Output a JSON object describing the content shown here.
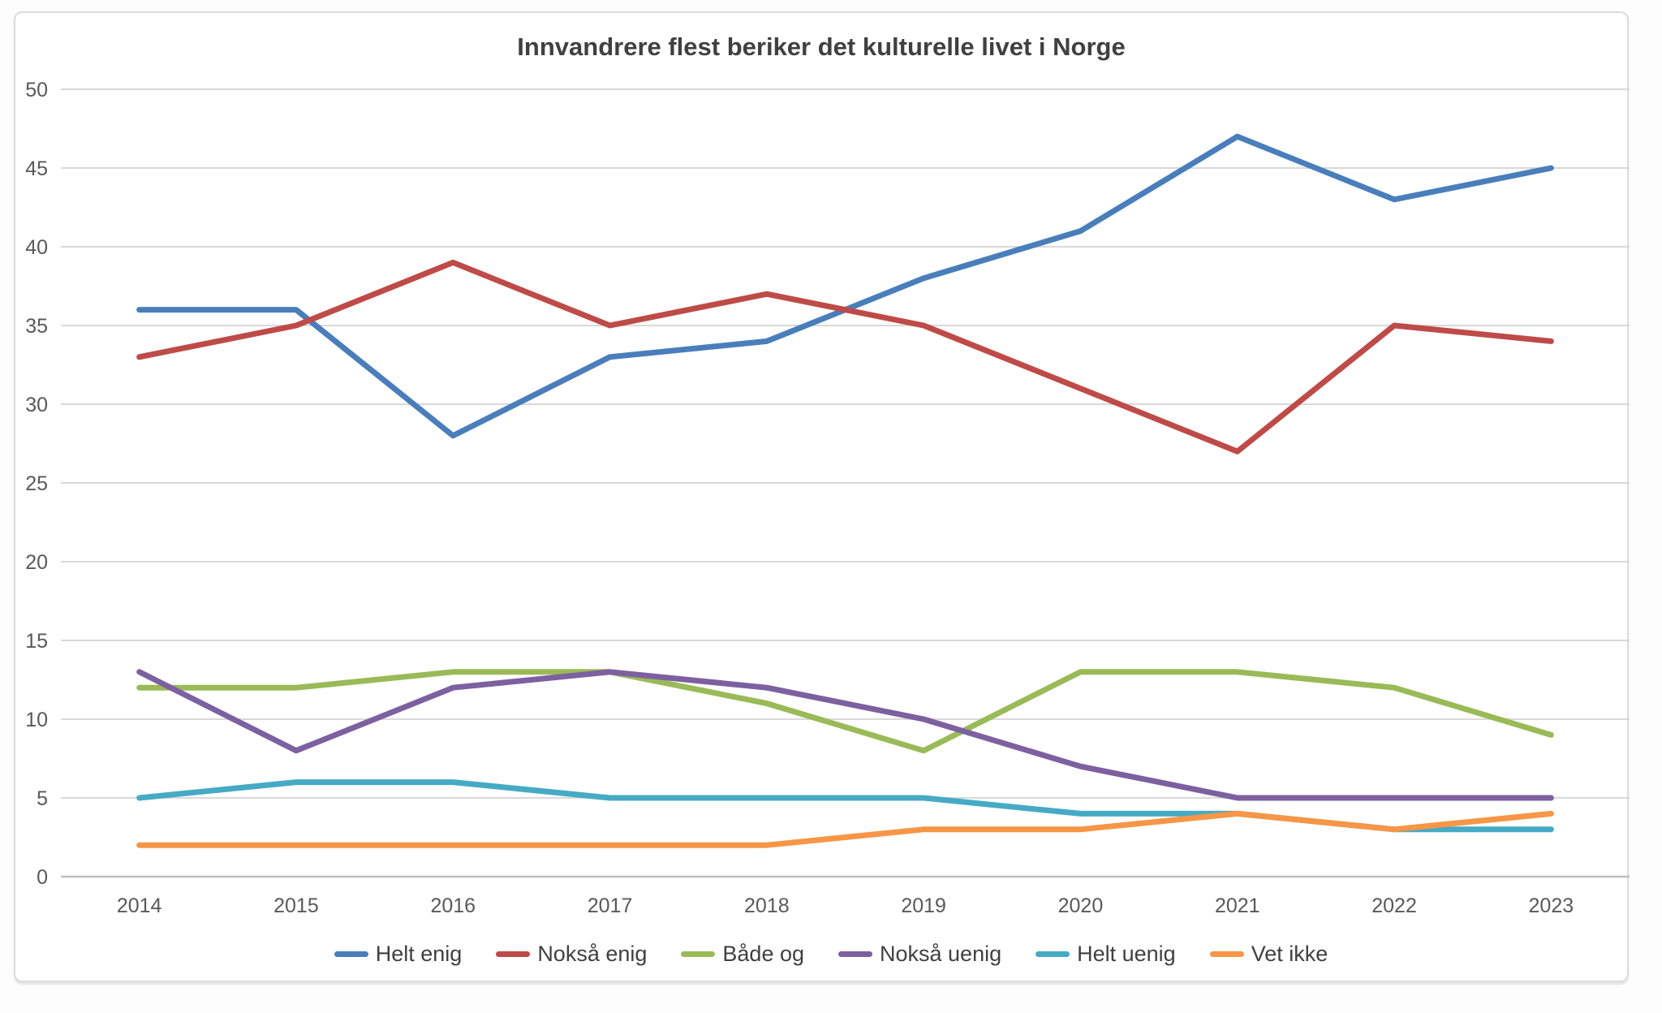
{
  "card": {
    "background": "#ffffff",
    "border_color": "#dcdcdc"
  },
  "chart_data": {
    "type": "line",
    "title": "Innvandrere flest beriker det kulturelle livet i Norge",
    "title_color": "#404040",
    "categories": [
      "2014",
      "2015",
      "2016",
      "2017",
      "2018",
      "2019",
      "2020",
      "2021",
      "2022",
      "2023"
    ],
    "series": [
      {
        "name": "Helt enig",
        "color": "#4A7EBB",
        "values": [
          36,
          36,
          28,
          33,
          34,
          38,
          41,
          47,
          43,
          45
        ]
      },
      {
        "name": "Nokså enig",
        "color": "#BE4B48",
        "values": [
          33,
          35,
          39,
          35,
          37,
          35,
          31,
          27,
          35,
          34
        ]
      },
      {
        "name": "Både og",
        "color": "#9ABA58",
        "values": [
          12,
          12,
          13,
          13,
          11,
          8,
          13,
          13,
          12,
          9
        ]
      },
      {
        "name": "Nokså uenig",
        "color": "#7D60A0",
        "values": [
          13,
          8,
          12,
          13,
          12,
          10,
          7,
          5,
          5,
          5
        ]
      },
      {
        "name": "Helt uenig",
        "color": "#46AAC5",
        "values": [
          5,
          6,
          6,
          5,
          5,
          5,
          4,
          4,
          3,
          3
        ]
      },
      {
        "name": "Vet ikke",
        "color": "#F79646",
        "values": [
          2,
          2,
          2,
          2,
          2,
          3,
          3,
          4,
          3,
          4
        ]
      }
    ],
    "xlabel": "",
    "ylabel": "",
    "ylim": [
      0,
      50
    ],
    "yticks": [
      0,
      5,
      10,
      15,
      20,
      25,
      30,
      35,
      40,
      45,
      50
    ],
    "grid": true,
    "grid_color": "#d9d9d9",
    "axis_color": "#bfbfbf",
    "tick_label_color": "#595959",
    "legend_position": "bottom"
  }
}
